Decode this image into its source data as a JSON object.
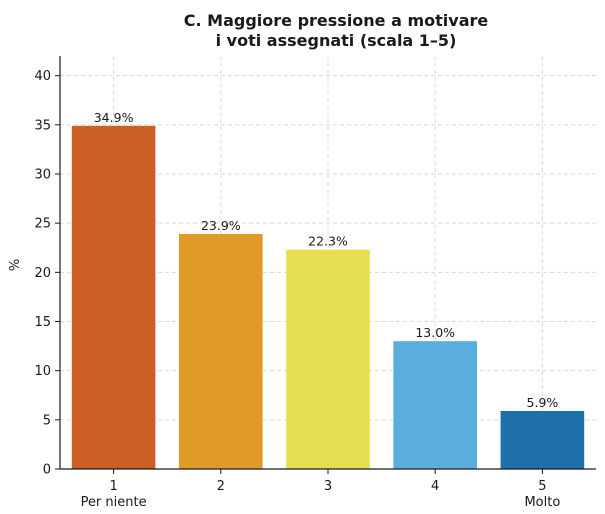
{
  "chart_data": {
    "type": "bar",
    "title_lines": [
      "C. Maggiore pressione a motivare",
      "i voti assegnati (scala 1–5)"
    ],
    "xlabel": "",
    "ylabel": "%",
    "ylim": [
      0,
      42
    ],
    "yticks": [
      "0",
      "5",
      "10",
      "15",
      "20",
      "25",
      "30",
      "35",
      "40"
    ],
    "grid": true,
    "categories": [
      "1",
      "2",
      "3",
      "4",
      "5"
    ],
    "category_sublabels": [
      "Per niente",
      "",
      "",
      "",
      "Molto"
    ],
    "values": [
      34.9,
      23.9,
      22.3,
      13.0,
      5.9
    ],
    "value_labels": [
      "34.9%",
      "23.9%",
      "22.3%",
      "13.0%",
      "5.9%"
    ],
    "colors": [
      "#cc5f24",
      "#e09a28",
      "#e6df52",
      "#5aaede",
      "#1e70ab"
    ]
  }
}
